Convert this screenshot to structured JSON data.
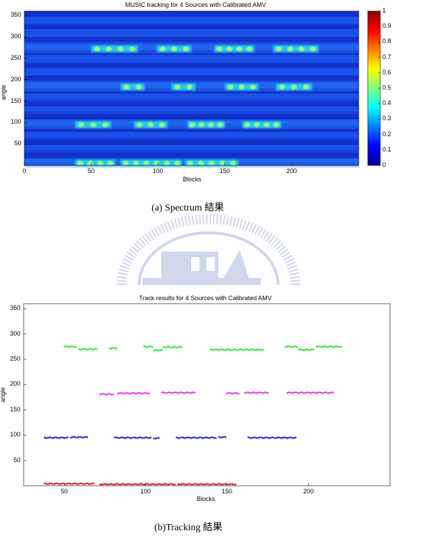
{
  "figure_a": {
    "caption": "(a) Spectrum 結果",
    "chart_data": {
      "type": "heatmap",
      "title": "MUSIC tracking for 4 Sources with Calibrated AMV",
      "xlabel": "Blocks",
      "ylabel": "angle",
      "xlim": [
        0,
        250
      ],
      "ylim": [
        0,
        360
      ],
      "xticks": [
        0,
        50,
        100,
        150,
        200
      ],
      "yticks": [
        50,
        100,
        150,
        200,
        250,
        300,
        350
      ],
      "colorbar_ticks": [
        "0",
        "0.1",
        "0.2",
        "0.3",
        "0.4",
        "0.5",
        "0.6",
        "0.7",
        "0.8",
        "0.9",
        "1"
      ],
      "colormap": "jet",
      "sources": [
        {
          "angle": 5,
          "active_blocks": [
            [
              38,
              68
            ],
            [
              72,
              118
            ],
            [
              120,
              160
            ]
          ]
        },
        {
          "angle": 95,
          "active_blocks": [
            [
              38,
              65
            ],
            [
              82,
              107
            ],
            [
              122,
              150
            ],
            [
              163,
              192
            ]
          ]
        },
        {
          "angle": 183,
          "active_blocks": [
            [
              72,
              90
            ],
            [
              110,
              128
            ],
            [
              150,
              175
            ],
            [
              188,
              215
            ]
          ]
        },
        {
          "angle": 272,
          "active_blocks": [
            [
              50,
              85
            ],
            [
              99,
              125
            ],
            [
              142,
              172
            ],
            [
              186,
              220
            ]
          ]
        }
      ]
    }
  },
  "figure_b": {
    "caption": "(b)Tracking 結果",
    "chart_data": {
      "type": "scatter",
      "title": "Track results for 4 Sources with Calibrated AMV",
      "xlabel": "Blocks",
      "ylabel": "angle",
      "xlim": [
        25,
        250
      ],
      "ylim": [
        0,
        360
      ],
      "xticks": [
        50,
        100,
        150,
        200
      ],
      "yticks": [
        50,
        100,
        150,
        200,
        250,
        300,
        350
      ],
      "series": [
        {
          "color": "#d01818",
          "segments": [
            [
              38,
              68,
              4
            ],
            [
              72,
              118,
              3
            ],
            [
              120,
              155,
              3
            ]
          ]
        },
        {
          "color": "#1818c0",
          "segments": [
            [
              38,
              52,
              95
            ],
            [
              54,
              64,
              96
            ],
            [
              81,
              103,
              95
            ],
            [
              105,
              108,
              94
            ],
            [
              119,
              143,
              95
            ],
            [
              145,
              149,
              96
            ],
            [
              163,
              192,
              95
            ]
          ]
        },
        {
          "color": "#e030e0",
          "segments": [
            [
              72,
              80,
              181
            ],
            [
              83,
              102,
              183
            ],
            [
              110,
              130,
              184
            ],
            [
              150,
              157,
              183
            ],
            [
              161,
              175,
              184
            ],
            [
              187,
              215,
              184
            ]
          ]
        },
        {
          "color": "#30e030",
          "segments": [
            [
              50,
              57,
              275
            ],
            [
              59,
              70,
              270
            ],
            [
              78,
              82,
              272
            ],
            [
              99,
              104,
              275
            ],
            [
              105,
              110,
              268
            ],
            [
              111,
              122,
              274
            ],
            [
              140,
              172,
              269
            ],
            [
              186,
              193,
              275
            ],
            [
              194,
              203,
              269
            ],
            [
              205,
              220,
              275
            ]
          ]
        }
      ]
    }
  }
}
